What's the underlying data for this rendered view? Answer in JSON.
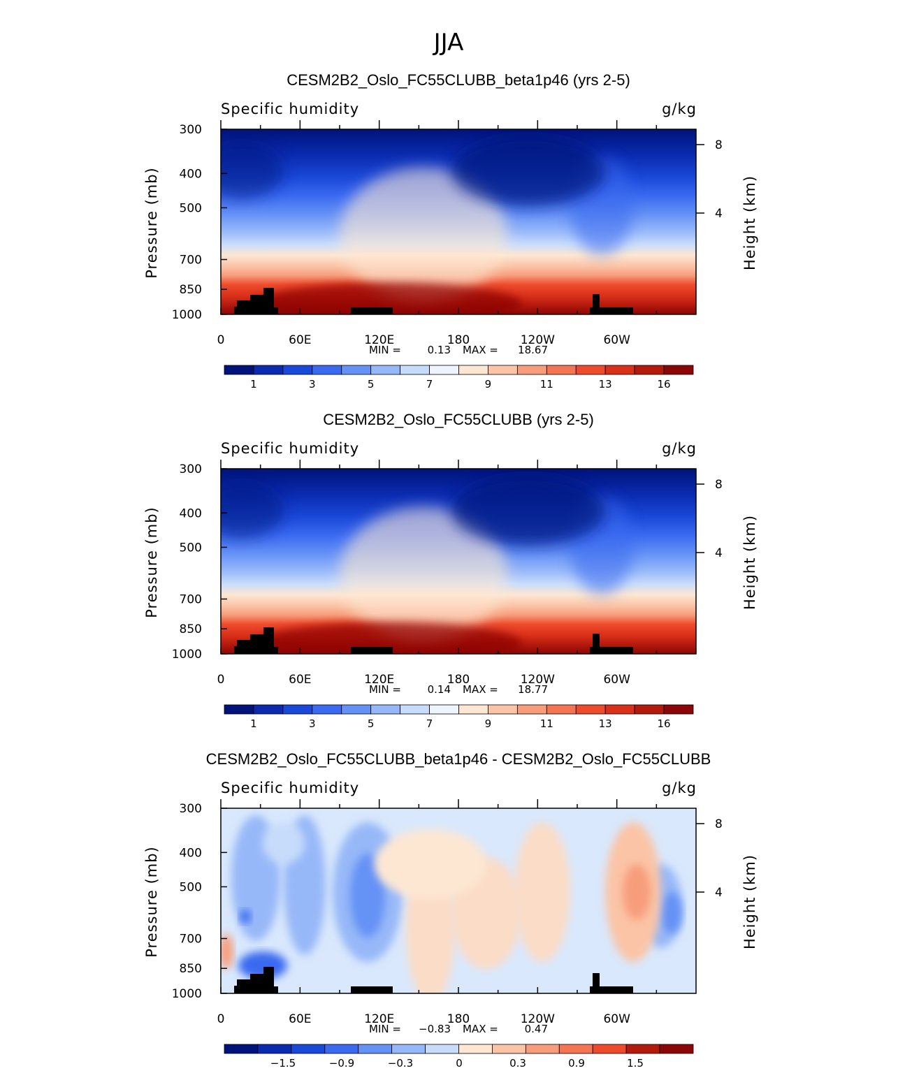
{
  "suptitle": "JJA",
  "chart_data": [
    {
      "type": "heatmap",
      "title": "CESM2B2_Oslo_FC55CLUBB_beta1p46 (yrs 2-5)",
      "left_label": "Specific humidity",
      "right_label": "g/kg",
      "ylabel": "Pressure (mb)",
      "ylabel_right": "Height (km)",
      "x_ticks": [
        "0",
        "60E",
        "120E",
        "180",
        "120W",
        "60W"
      ],
      "y_ticks": [
        "300",
        "400",
        "500",
        "700",
        "850",
        "1000"
      ],
      "y_ticks_right": [
        "8",
        "4"
      ],
      "min_text": "MIN =",
      "min_value": "0.13",
      "max_text": "MAX =",
      "max_value": "18.67",
      "colorbar_labels": [
        "1",
        "3",
        "5",
        "7",
        "9",
        "11",
        "13",
        "16"
      ],
      "colorbar_colors": [
        "#00137a",
        "#0a2bb0",
        "#1a48d8",
        "#3a6af0",
        "#6592f5",
        "#97b8f8",
        "#c7dcfb",
        "#eef5fe",
        "#fde7d3",
        "#fbc4a6",
        "#f79d7c",
        "#f37553",
        "#ee4b2c",
        "#d9301a",
        "#b31a0c",
        "#8b0606"
      ],
      "ylim": [
        1000,
        300
      ],
      "xlim": [
        0,
        360
      ]
    },
    {
      "type": "heatmap",
      "title": "CESM2B2_Oslo_FC55CLUBB (yrs 2-5)",
      "left_label": "Specific humidity",
      "right_label": "g/kg",
      "ylabel": "Pressure (mb)",
      "ylabel_right": "Height (km)",
      "x_ticks": [
        "0",
        "60E",
        "120E",
        "180",
        "120W",
        "60W"
      ],
      "y_ticks": [
        "300",
        "400",
        "500",
        "700",
        "850",
        "1000"
      ],
      "y_ticks_right": [
        "8",
        "4"
      ],
      "min_text": "MIN =",
      "min_value": "0.14",
      "max_text": "MAX =",
      "max_value": "18.77",
      "colorbar_labels": [
        "1",
        "3",
        "5",
        "7",
        "9",
        "11",
        "13",
        "16"
      ],
      "colorbar_colors": [
        "#00137a",
        "#0a2bb0",
        "#1a48d8",
        "#3a6af0",
        "#6592f5",
        "#97b8f8",
        "#c7dcfb",
        "#eef5fe",
        "#fde7d3",
        "#fbc4a6",
        "#f79d7c",
        "#f37553",
        "#ee4b2c",
        "#d9301a",
        "#b31a0c",
        "#8b0606"
      ],
      "ylim": [
        1000,
        300
      ],
      "xlim": [
        0,
        360
      ]
    },
    {
      "type": "heatmap",
      "title": "CESM2B2_Oslo_FC55CLUBB_beta1p46 - CESM2B2_Oslo_FC55CLUBB",
      "left_label": "Specific humidity",
      "right_label": "g/kg",
      "ylabel": "Pressure (mb)",
      "ylabel_right": "Height (km)",
      "x_ticks": [
        "0",
        "60E",
        "120E",
        "180",
        "120W",
        "60W"
      ],
      "y_ticks": [
        "300",
        "400",
        "500",
        "700",
        "850",
        "1000"
      ],
      "y_ticks_right": [
        "8",
        "4"
      ],
      "min_text": "MIN =",
      "min_value": "−0.83",
      "max_text": "MAX =",
      "max_value": "0.47",
      "colorbar_labels": [
        "−1.5",
        "−0.9",
        "−0.3",
        "0",
        "0.3",
        "0.9",
        "1.5"
      ],
      "colorbar_colors": [
        "#00137a",
        "#0a2bb0",
        "#1a48d8",
        "#3a6af0",
        "#6592f5",
        "#97b8f8",
        "#c7dcfb",
        "#fde7d3",
        "#fbc4a6",
        "#f79d7c",
        "#f37553",
        "#ee4b2c",
        "#b31a0c",
        "#8b0606"
      ],
      "ylim": [
        1000,
        300
      ],
      "xlim": [
        0,
        360
      ]
    }
  ]
}
